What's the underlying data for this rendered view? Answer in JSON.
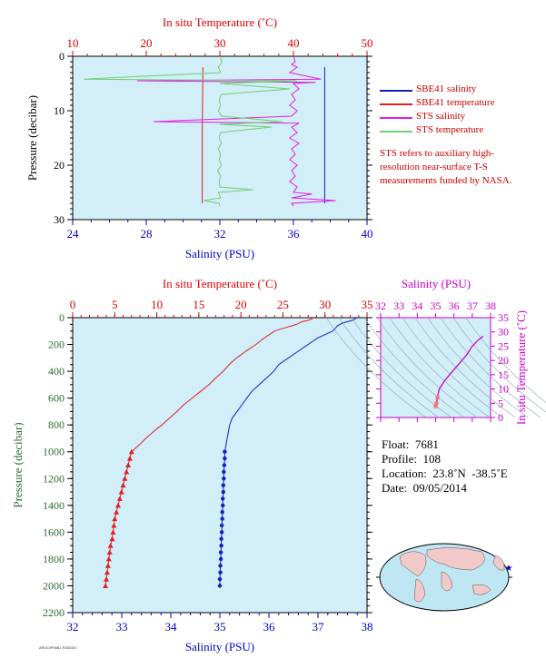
{
  "colors": {
    "background": "#d2eef8",
    "axis_red": "#e00000",
    "axis_blue": "#0000cc",
    "axis_magenta": "#cc00cc",
    "axis_green": "#2e6b2e",
    "sbe_salinity": "#1020c0",
    "sbe_temperature": "#e02020",
    "sts_salinity": "#e020e0",
    "sts_temperature": "#70d070"
  },
  "legend": {
    "items": [
      {
        "label": "SBE41 salinity",
        "color": "#1020c0"
      },
      {
        "label": "SBE41 temperature",
        "color": "#e02020"
      },
      {
        "label": "STS salinity",
        "color": "#e020e0"
      },
      {
        "label": "STS temperature",
        "color": "#70d070"
      }
    ],
    "note": "STS refers to auxiliary high-resolution near-surface T-S measurements funded by NASA."
  },
  "info": {
    "float": "Float:  7681",
    "profile": "Profile:  108",
    "location": "Location:  23.8˚N  -38.5˚E",
    "date": "Date:  09/05/2014"
  },
  "footer_code": "ARGO/P0681 R3003/4",
  "chart_data": [
    {
      "id": "near-surface",
      "type": "line",
      "top_axis": {
        "label": "In situ Temperature (˚C)",
        "ticks": [
          "10",
          "20",
          "30",
          "40",
          "50"
        ],
        "range": [
          10,
          50
        ]
      },
      "bottom_axis": {
        "label": "Salinity (PSU)",
        "ticks": [
          "24",
          "28",
          "32",
          "36",
          "40"
        ],
        "range": [
          24,
          40
        ]
      },
      "y_axis": {
        "label": "Pressure (decibar)",
        "ticks": [
          "0",
          "10",
          "20",
          "30"
        ],
        "range": [
          0,
          30
        ],
        "inverted": true
      },
      "series": [
        {
          "name": "SBE41 salinity",
          "axis": "bottom",
          "points": [
            [
              37.7,
              2
            ],
            [
              37.7,
              27
            ]
          ]
        },
        {
          "name": "SBE41 temperature",
          "axis": "top",
          "points": [
            [
              27.7,
              2
            ],
            [
              27.6,
              14
            ],
            [
              27.6,
              27
            ]
          ]
        },
        {
          "name": "STS salinity",
          "axis": "bottom",
          "points": [
            [
              36,
              0
            ],
            [
              36.1,
              1
            ],
            [
              35.9,
              1.5
            ],
            [
              36.2,
              2
            ],
            [
              35.8,
              3
            ],
            [
              37.5,
              4.2
            ],
            [
              27.5,
              4.5
            ],
            [
              37.2,
              4.8
            ],
            [
              36.0,
              5
            ],
            [
              36.3,
              6
            ],
            [
              35.9,
              7
            ],
            [
              36.1,
              8
            ],
            [
              35.8,
              9
            ],
            [
              36.2,
              10
            ],
            [
              35.9,
              11
            ],
            [
              28.4,
              12
            ],
            [
              36.3,
              12.3
            ],
            [
              35.9,
              13
            ],
            [
              36.2,
              14
            ],
            [
              35.8,
              15
            ],
            [
              36.3,
              16
            ],
            [
              35.9,
              17
            ],
            [
              36.1,
              18
            ],
            [
              35.8,
              19
            ],
            [
              36.2,
              20
            ],
            [
              35.9,
              21
            ],
            [
              36.1,
              22
            ],
            [
              35.8,
              23
            ],
            [
              36.2,
              24
            ],
            [
              36.0,
              25
            ],
            [
              37.0,
              25.3
            ],
            [
              35.9,
              26
            ],
            [
              38.3,
              26.5
            ],
            [
              35.9,
              27
            ],
            [
              36.0,
              27.5
            ]
          ]
        },
        {
          "name": "STS temperature",
          "axis": "top",
          "points": [
            [
              30,
              0
            ],
            [
              30.3,
              1
            ],
            [
              29.8,
              2
            ],
            [
              30.1,
              3
            ],
            [
              11.5,
              4.2
            ],
            [
              40.5,
              4.5
            ],
            [
              30.0,
              5
            ],
            [
              39.5,
              6
            ],
            [
              30.2,
              7
            ],
            [
              29.9,
              8
            ],
            [
              30.1,
              9
            ],
            [
              29.8,
              10
            ],
            [
              30.2,
              11
            ],
            [
              38.5,
              12
            ],
            [
              30.0,
              12.5
            ],
            [
              37,
              13
            ],
            [
              30.1,
              14
            ],
            [
              29.9,
              15
            ],
            [
              30.2,
              16
            ],
            [
              29.8,
              17
            ],
            [
              30.1,
              18
            ],
            [
              29.9,
              19
            ],
            [
              30.2,
              20
            ],
            [
              29.7,
              21
            ],
            [
              30.1,
              22
            ],
            [
              29.9,
              23
            ],
            [
              30.0,
              24
            ],
            [
              34.5,
              24.5
            ],
            [
              29.8,
              25
            ],
            [
              30.1,
              26
            ],
            [
              27.8,
              26.5
            ],
            [
              29.9,
              27
            ],
            [
              30.0,
              27.5
            ]
          ]
        }
      ]
    },
    {
      "id": "full-profile",
      "type": "line",
      "top_axis": {
        "label": "In situ Temperature (˚C)",
        "ticks": [
          "0",
          "5",
          "10",
          "15",
          "20",
          "25",
          "30",
          "35"
        ],
        "range": [
          0,
          35
        ]
      },
      "bottom_axis": {
        "label": "Salinity (PSU)",
        "ticks": [
          "32",
          "33",
          "34",
          "35",
          "36",
          "37",
          "38"
        ],
        "range": [
          32,
          38
        ]
      },
      "y_axis": {
        "label": "Pressure (decibar)",
        "ticks": [
          "0",
          "200",
          "400",
          "600",
          "800",
          "1000",
          "1200",
          "1400",
          "1600",
          "1800",
          "2000",
          "2200"
        ],
        "range": [
          0,
          2200
        ],
        "inverted": true
      },
      "series": [
        {
          "name": "temperature",
          "axis": "top",
          "marker_from": 1000,
          "points": [
            [
              28.6,
              0
            ],
            [
              28.4,
              10
            ],
            [
              28.0,
              20
            ],
            [
              27.3,
              30
            ],
            [
              26.6,
              50
            ],
            [
              26.1,
              60
            ],
            [
              25.0,
              80
            ],
            [
              24.0,
              100
            ],
            [
              23.3,
              130
            ],
            [
              22.6,
              160
            ],
            [
              21.8,
              200
            ],
            [
              20.6,
              250
            ],
            [
              19.5,
              300
            ],
            [
              18.6,
              350
            ],
            [
              17.9,
              400
            ],
            [
              17.0,
              450
            ],
            [
              16.2,
              500
            ],
            [
              15.2,
              550
            ],
            [
              14.2,
              600
            ],
            [
              13.2,
              650
            ],
            [
              12.4,
              700
            ],
            [
              11.5,
              750
            ],
            [
              10.6,
              800
            ],
            [
              9.6,
              850
            ],
            [
              8.7,
              900
            ],
            [
              7.9,
              950
            ],
            [
              7.0,
              1000
            ],
            [
              6.8,
              1050
            ],
            [
              6.6,
              1100
            ],
            [
              6.4,
              1150
            ],
            [
              6.2,
              1200
            ],
            [
              6.0,
              1250
            ],
            [
              5.8,
              1300
            ],
            [
              5.6,
              1350
            ],
            [
              5.4,
              1400
            ],
            [
              5.2,
              1450
            ],
            [
              5.0,
              1500
            ],
            [
              4.9,
              1550
            ],
            [
              4.8,
              1600
            ],
            [
              4.7,
              1650
            ],
            [
              4.5,
              1700
            ],
            [
              4.4,
              1750
            ],
            [
              4.3,
              1800
            ],
            [
              4.2,
              1850
            ],
            [
              4.1,
              1900
            ],
            [
              4.0,
              1950
            ],
            [
              3.9,
              2000
            ]
          ]
        },
        {
          "name": "salinity",
          "axis": "bottom",
          "marker_from": 1000,
          "points": [
            [
              37.8,
              0
            ],
            [
              37.7,
              20
            ],
            [
              37.5,
              40
            ],
            [
              37.4,
              60
            ],
            [
              37.3,
              100
            ],
            [
              37.0,
              150
            ],
            [
              36.8,
              200
            ],
            [
              36.6,
              250
            ],
            [
              36.4,
              300
            ],
            [
              36.2,
              350
            ],
            [
              36.1,
              400
            ],
            [
              35.95,
              450
            ],
            [
              35.8,
              500
            ],
            [
              35.65,
              550
            ],
            [
              35.55,
              600
            ],
            [
              35.45,
              650
            ],
            [
              35.35,
              700
            ],
            [
              35.25,
              750
            ],
            [
              35.2,
              800
            ],
            [
              35.15,
              900
            ],
            [
              35.1,
              1000
            ],
            [
              35.1,
              1050
            ],
            [
              35.09,
              1100
            ],
            [
              35.08,
              1150
            ],
            [
              35.08,
              1200
            ],
            [
              35.07,
              1250
            ],
            [
              35.07,
              1300
            ],
            [
              35.06,
              1350
            ],
            [
              35.06,
              1400
            ],
            [
              35.05,
              1450
            ],
            [
              35.05,
              1500
            ],
            [
              35.04,
              1550
            ],
            [
              35.04,
              1600
            ],
            [
              35.03,
              1650
            ],
            [
              35.03,
              1700
            ],
            [
              35.02,
              1750
            ],
            [
              35.02,
              1800
            ],
            [
              35.01,
              1850
            ],
            [
              35.01,
              1900
            ],
            [
              35.0,
              1950
            ],
            [
              35.0,
              2000
            ]
          ]
        }
      ]
    },
    {
      "id": "ts-diagram",
      "type": "line",
      "top_axis": {
        "label": "Salinity (PSU)",
        "ticks": [
          "32",
          "33",
          "34",
          "35",
          "36",
          "37",
          "38"
        ],
        "range": [
          32,
          38
        ]
      },
      "right_axis": {
        "label": "In situ Temperature (˚C)",
        "ticks": [
          "0",
          "5",
          "10",
          "15",
          "20",
          "25",
          "30",
          "35"
        ],
        "range": [
          0,
          35
        ]
      },
      "series": [
        {
          "name": "T-S",
          "points": [
            [
              35.0,
              3.9
            ],
            [
              35.05,
              5
            ],
            [
              35.1,
              7
            ],
            [
              35.2,
              10
            ],
            [
              35.5,
              13
            ],
            [
              35.9,
              16
            ],
            [
              36.3,
              19
            ],
            [
              36.7,
              22
            ],
            [
              37.0,
              25
            ],
            [
              37.3,
              27
            ],
            [
              37.6,
              28.5
            ]
          ]
        }
      ]
    }
  ]
}
